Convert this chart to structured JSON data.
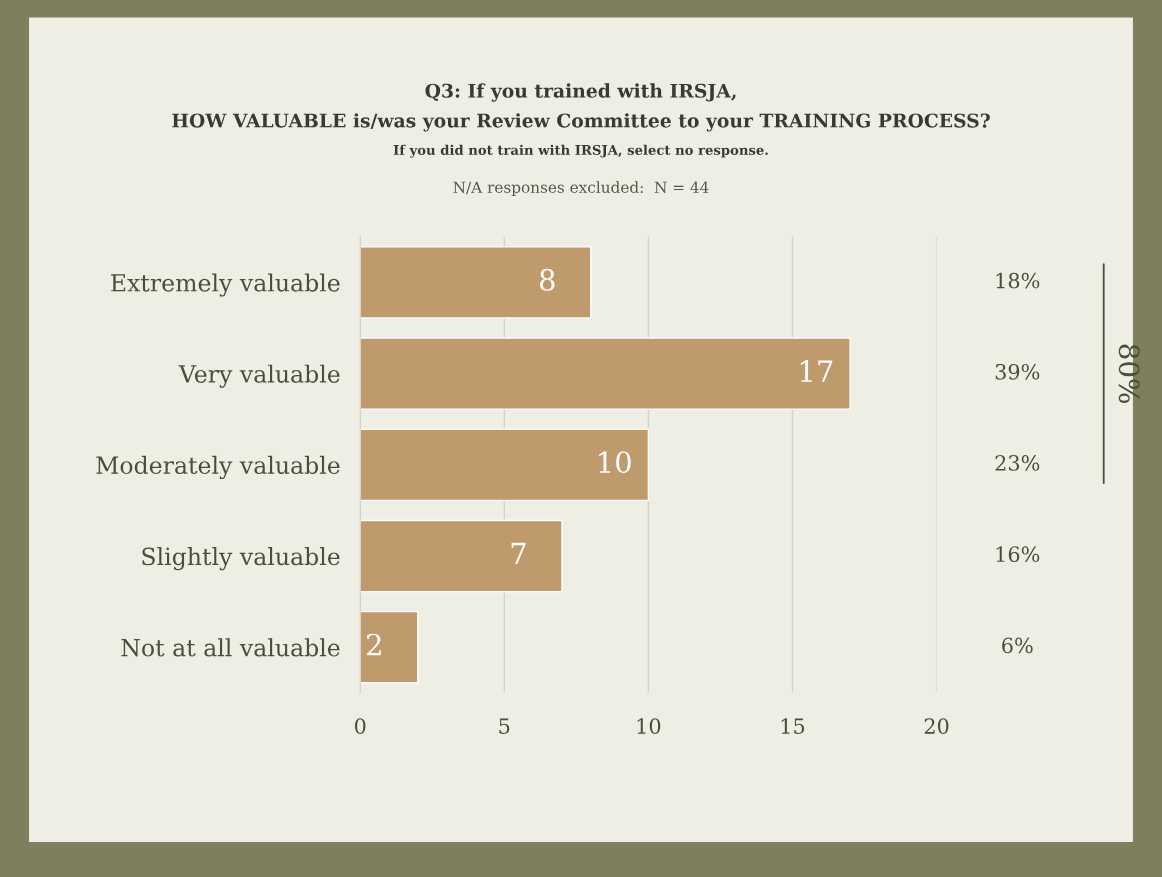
{
  "chart_data": {
    "type": "bar",
    "orientation": "horizontal",
    "title": "Q3: If you trained with IRSJA,\nHOW VALUABLE is/was your Review Committee to your TRAINING PROCESS?",
    "subtitle": "If you did not train with IRSJA, select no response.",
    "categories": [
      "Extremely valuable",
      "Very valuable",
      "Moderately valuable",
      "Slightly valuable",
      "Not at all valuable"
    ],
    "values": [
      8,
      17,
      10,
      7,
      2
    ],
    "color": "#bf9a6c",
    "xlim": [
      0,
      20
    ],
    "xticks": [
      0,
      5,
      10,
      15,
      20
    ],
    "grid": "x",
    "data_labels": true,
    "annotations": [
      "N/A responses excluded:  N = 44",
      "18%",
      "39%",
      "23%",
      "16%",
      "6%",
      "80%"
    ]
  }
}
